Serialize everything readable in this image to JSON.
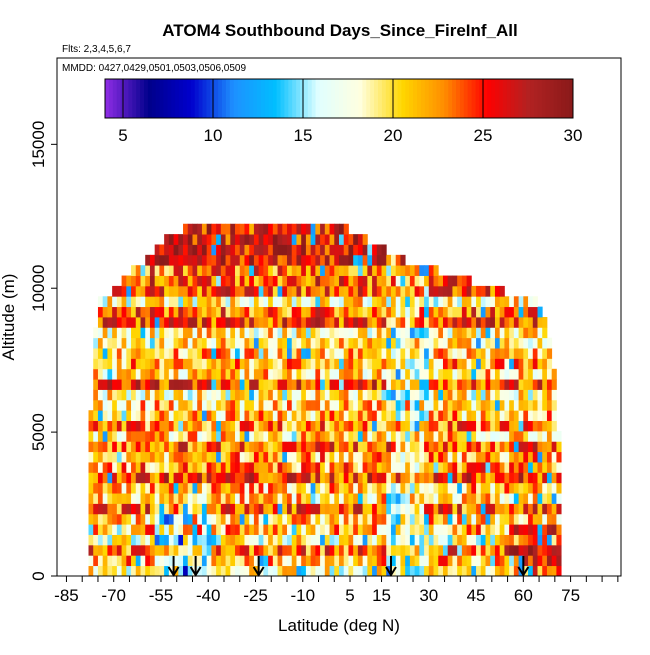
{
  "chart_data": {
    "type": "heatmap",
    "title": "ATOM4 Southbound Days_Since_FireInf_All",
    "flights_label": "Flts: 2,3,4,5,6,7",
    "dates_label": "MMDD: 0427,0429,0501,0503,0506,0509",
    "xlabel": "Latitude (deg N)",
    "ylabel": "Altitude (m)",
    "xlim": [
      -88,
      91
    ],
    "ylim": [
      0,
      18000
    ],
    "xticks": [
      -85,
      -80,
      -75,
      -70,
      -65,
      -60,
      -55,
      -50,
      -45,
      -40,
      -35,
      -30,
      -25,
      -20,
      -15,
      -10,
      -5,
      0,
      5,
      10,
      15,
      20,
      25,
      30,
      35,
      40,
      45,
      50,
      55,
      60,
      65,
      70,
      75,
      80,
      85,
      90
    ],
    "xtick_labels": [
      {
        "value": -85,
        "label": "-85"
      },
      {
        "value": -70,
        "label": "-70"
      },
      {
        "value": -55,
        "label": "-55"
      },
      {
        "value": -40,
        "label": "-40"
      },
      {
        "value": -25,
        "label": "-25"
      },
      {
        "value": -10,
        "label": "-10"
      },
      {
        "value": 5,
        "label": "5"
      },
      {
        "value": 15,
        "label": "15"
      },
      {
        "value": 30,
        "label": "30"
      },
      {
        "value": 45,
        "label": "45"
      },
      {
        "value": 60,
        "label": "60"
      },
      {
        "value": 75,
        "label": "75"
      }
    ],
    "yticks": [
      0,
      5000,
      10000,
      15000
    ],
    "ytick_labels": [
      "0",
      "5000",
      "10000",
      "15000"
    ],
    "colorbar": {
      "range": [
        4,
        30
      ],
      "ticks": [
        5,
        10,
        15,
        20,
        25,
        30
      ],
      "tick_labels": [
        "5",
        "10",
        "15",
        "20",
        "25",
        "30"
      ],
      "colors": [
        "#8a2be2",
        "#00008b",
        "#0000cd",
        "#1e90ff",
        "#00bfff",
        "#e0ffff",
        "#ffffe0",
        "#ffd700",
        "#ff8c00",
        "#ff0000",
        "#b22222",
        "#8b1a1a"
      ]
    },
    "arrows_lat": [
      -51,
      -44,
      -24,
      18,
      60
    ],
    "latitude_extent": [
      -78,
      72
    ],
    "altitude_top_by_latitude": [
      {
        "lat": -78,
        "alt": 1500
      },
      {
        "lat": -77,
        "alt": 7000
      },
      {
        "lat": -75,
        "alt": 9500
      },
      {
        "lat": -70,
        "alt": 10000
      },
      {
        "lat": -62,
        "alt": 10800
      },
      {
        "lat": -55,
        "alt": 11600
      },
      {
        "lat": -45,
        "alt": 12300
      },
      {
        "lat": 0,
        "alt": 12300
      },
      {
        "lat": 8,
        "alt": 11800
      },
      {
        "lat": 22,
        "alt": 11000
      },
      {
        "lat": 45,
        "alt": 10200
      },
      {
        "lat": 66,
        "alt": 9500
      },
      {
        "lat": 69,
        "alt": 8000
      },
      {
        "lat": 71,
        "alt": 6000
      },
      {
        "lat": 72,
        "alt": 1500
      }
    ]
  }
}
